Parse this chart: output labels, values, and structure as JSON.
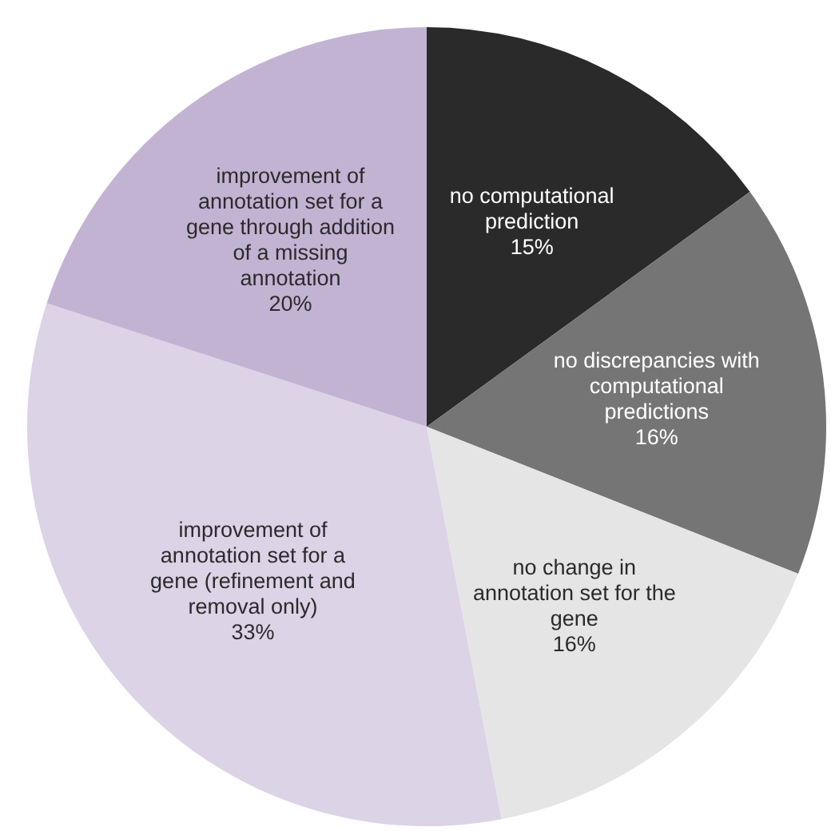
{
  "chart_data": {
    "type": "pie",
    "categories": [
      "no computational prediction",
      "no discrepancies with computational predictions",
      "no change in annotation set for the gene",
      "improvement of annotation set for a gene (refinement and removal only)",
      "improvement of annotation set for a gene through addition of a missing annotation"
    ],
    "values": [
      15,
      16,
      16,
      33,
      20
    ],
    "value_labels": [
      "15%",
      "16%",
      "16%",
      "33%",
      "20%"
    ],
    "colors": [
      "#2b2a2b",
      "#767576",
      "#e6e5e6",
      "#dcd3e6",
      "#c3b3d3"
    ]
  }
}
